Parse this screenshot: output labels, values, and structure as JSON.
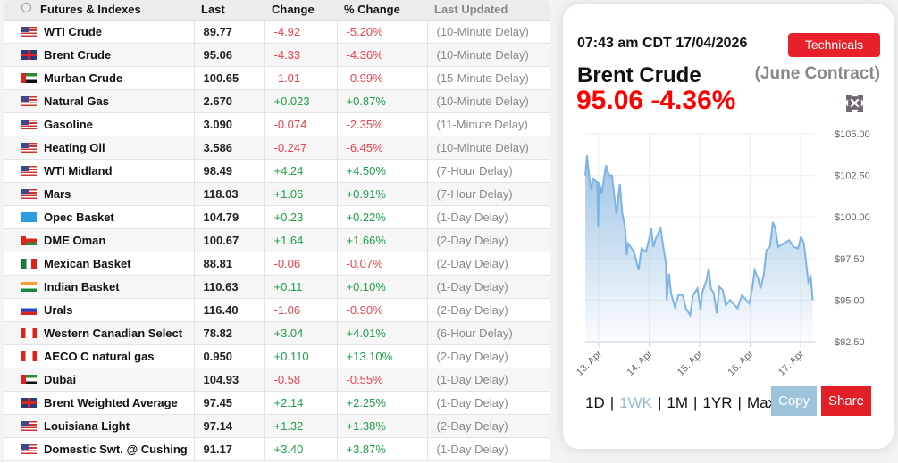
{
  "table": {
    "headers": {
      "name": "Futures & Indexes",
      "last": "Last",
      "change": "Change",
      "pct": "% Change",
      "updated": "Last Updated"
    },
    "rows": [
      {
        "flag": "us",
        "name": "WTI Crude",
        "last": "89.77",
        "change": "-4.92",
        "pct": "-5.20%",
        "updated": "(10-Minute Delay)"
      },
      {
        "flag": "uk",
        "name": "Brent Crude",
        "last": "95.06",
        "change": "-4.33",
        "pct": "-4.36%",
        "updated": "(10-Minute Delay)"
      },
      {
        "flag": "ae",
        "name": "Murban Crude",
        "last": "100.65",
        "change": "-1.01",
        "pct": "-0.99%",
        "updated": "(15-Minute Delay)"
      },
      {
        "flag": "us",
        "name": "Natural Gas",
        "last": "2.670",
        "change": "+0.023",
        "pct": "+0.87%",
        "updated": "(10-Minute Delay)"
      },
      {
        "flag": "us",
        "name": "Gasoline",
        "last": "3.090",
        "change": "-0.074",
        "pct": "-2.35%",
        "updated": "(11-Minute Delay)"
      },
      {
        "flag": "us",
        "name": "Heating Oil",
        "last": "3.586",
        "change": "-0.247",
        "pct": "-6.45%",
        "updated": "(10-Minute Delay)"
      },
      {
        "flag": "us",
        "name": "WTI Midland",
        "last": "98.49",
        "change": "+4.24",
        "pct": "+4.50%",
        "updated": "(7-Hour Delay)"
      },
      {
        "flag": "us",
        "name": "Mars",
        "last": "118.03",
        "change": "+1.06",
        "pct": "+0.91%",
        "updated": "(7-Hour Delay)"
      },
      {
        "flag": "opec",
        "name": "Opec Basket",
        "last": "104.79",
        "change": "+0.23",
        "pct": "+0.22%",
        "updated": "(1-Day Delay)"
      },
      {
        "flag": "om",
        "name": "DME Oman",
        "last": "100.67",
        "change": "+1.64",
        "pct": "+1.66%",
        "updated": "(2-Day Delay)"
      },
      {
        "flag": "mx",
        "name": "Mexican Basket",
        "last": "88.81",
        "change": "-0.06",
        "pct": "-0.07%",
        "updated": "(2-Day Delay)"
      },
      {
        "flag": "in",
        "name": "Indian Basket",
        "last": "110.63",
        "change": "+0.11",
        "pct": "+0.10%",
        "updated": "(1-Day Delay)"
      },
      {
        "flag": "ru",
        "name": "Urals",
        "last": "116.40",
        "change": "-1.06",
        "pct": "-0.90%",
        "updated": "(2-Day Delay)"
      },
      {
        "flag": "ca",
        "name": "Western Canadian Select",
        "last": "78.82",
        "change": "+3.04",
        "pct": "+4.01%",
        "updated": "(6-Hour Delay)"
      },
      {
        "flag": "ca",
        "name": "AECO C natural gas",
        "last": "0.950",
        "change": "+0.110",
        "pct": "+13.10%",
        "updated": "(2-Day Delay)"
      },
      {
        "flag": "ae",
        "name": "Dubai",
        "last": "104.93",
        "change": "-0.58",
        "pct": "-0.55%",
        "updated": "(1-Day Delay)"
      },
      {
        "flag": "uk",
        "name": "Brent Weighted Average",
        "last": "97.45",
        "change": "+2.14",
        "pct": "+2.25%",
        "updated": "(1-Day Delay)"
      },
      {
        "flag": "us",
        "name": "Louisiana Light",
        "last": "97.14",
        "change": "+1.32",
        "pct": "+1.38%",
        "updated": "(2-Day Delay)"
      },
      {
        "flag": "us",
        "name": "Domestic Swt. @ Cushing",
        "last": "91.17",
        "change": "+3.40",
        "pct": "+3.87%",
        "updated": "(1-Day Delay)"
      }
    ]
  },
  "panel": {
    "timestamp": "07:43 am CDT 17/04/2026",
    "technicals_label": "Technicals",
    "title": "Brent Crude",
    "contract": "(June Contract)",
    "price_line": "95.06 -4.36%",
    "expand_icon": "expand-arrows-icon",
    "ranges": [
      "1D",
      "1WK",
      "1M",
      "1YR",
      "Max"
    ],
    "selected_range": "1WK",
    "copy_label": "Copy",
    "share_label": "Share"
  },
  "colors": {
    "negative": "#e8424d",
    "positive": "#1e9e4a",
    "price": "#ff0000",
    "accent_red": "#e21f26",
    "line": "#7eb3e6"
  },
  "chart_data": {
    "type": "area",
    "y_ticks": [
      "$105.00",
      "$102.50",
      "$100.00",
      "$97.50",
      "$95.00",
      "$92.50"
    ],
    "ylim": [
      92.5,
      105
    ],
    "x_ticks": [
      "13. Apr",
      "14. Apr",
      "15. Apr",
      "16. Apr",
      "17. Apr"
    ],
    "grid": true,
    "y_axis_position": "right",
    "x": [
      "2026-04-12T17:40",
      "2026-04-12T18:25",
      "2026-04-12T19:50",
      "2026-04-12T20:30",
      "2026-04-12T21:10",
      "2026-04-12T23:20",
      "2026-04-12T23:45",
      "2026-04-13T00:15",
      "2026-04-13T01:25",
      "2026-04-13T03:30",
      "2026-04-13T04:55",
      "2026-04-13T06:20",
      "2026-04-13T08:25",
      "2026-04-13T10:05",
      "2026-04-13T11:15",
      "2026-04-13T12:40",
      "2026-04-13T13:20",
      "2026-04-13T14:00",
      "2026-04-13T16:50",
      "2026-04-13T19:00",
      "2026-04-13T20:20",
      "2026-04-13T22:30",
      "2026-04-13T23:50",
      "2026-04-14T01:00",
      "2026-04-14T02:00",
      "2026-04-14T03:25",
      "2026-04-14T05:30",
      "2026-04-14T06:50",
      "2026-04-14T08:00",
      "2026-04-14T08:20",
      "2026-04-14T09:25",
      "2026-04-14T10:25",
      "2026-04-14T12:15",
      "2026-04-14T13:55",
      "2026-04-14T16:00",
      "2026-04-14T17:25",
      "2026-04-14T19:30",
      "2026-04-14T20:55",
      "2026-04-14T23:00",
      "2026-04-15T00:25",
      "2026-04-15T01:05",
      "2026-04-15T03:15",
      "2026-04-15T04:20",
      "2026-04-15T05:20",
      "2026-04-15T06:45",
      "2026-04-15T08:10",
      "2026-04-15T09:20",
      "2026-04-15T11:00",
      "2026-04-15T12:25",
      "2026-04-15T14:30",
      "2026-04-15T18:00",
      "2026-04-15T20:05",
      "2026-04-15T22:10",
      "2026-04-15T23:35",
      "2026-04-16T01:00",
      "2026-04-16T02:10",
      "2026-04-16T03:50",
      "2026-04-16T04:55",
      "2026-04-16T06:35",
      "2026-04-16T07:45",
      "2026-04-16T09:25",
      "2026-04-16T10:50",
      "2026-04-16T12:00",
      "2026-04-16T13:20",
      "2026-04-16T15:45",
      "2026-04-16T18:35",
      "2026-04-16T20:40",
      "2026-04-16T22:45",
      "2026-04-17T00:10",
      "2026-04-17T01:35",
      "2026-04-17T02:35",
      "2026-04-17T03:40",
      "2026-04-17T04:50",
      "2026-04-17T05:45"
    ],
    "y": [
      102.5,
      103.7,
      102.1,
      101.6,
      102.3,
      102.1,
      99.4,
      102.1,
      101.4,
      103.1,
      102.5,
      102.5,
      100.2,
      102.0,
      100.2,
      99.3,
      97.7,
      98.4,
      97.9,
      96.8,
      98.1,
      97.9,
      98.6,
      99.3,
      98.2,
      98.8,
      99.3,
      98.1,
      97.2,
      95.0,
      96.6,
      95.4,
      94.6,
      95.3,
      95.3,
      94.5,
      94.1,
      95.3,
      95.7,
      94.4,
      95.4,
      96.2,
      96.9,
      95.7,
      95.4,
      94.2,
      95.8,
      95.6,
      94.7,
      95.0,
      94.5,
      95.3,
      95.0,
      94.8,
      95.7,
      96.8,
      96.3,
      95.7,
      96.6,
      98.0,
      98.2,
      99.7,
      99.3,
      98.2,
      98.4,
      98.6,
      98.2,
      98.1,
      98.8,
      98.4,
      97.3,
      96.1,
      96.4,
      95.0
    ]
  }
}
